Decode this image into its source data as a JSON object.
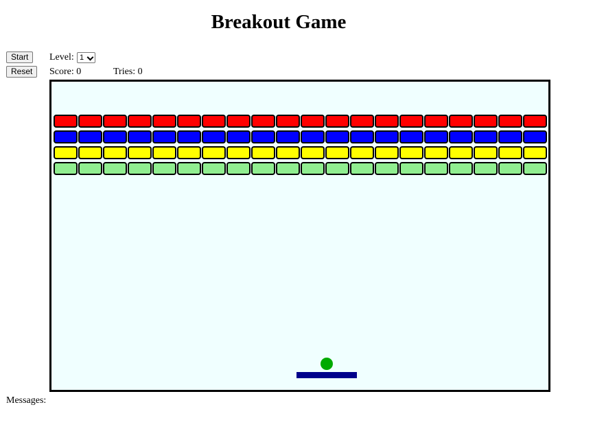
{
  "page": {
    "title": "Breakout Game"
  },
  "controls": {
    "start_label": "Start",
    "reset_label": "Reset",
    "level_label": "Level:",
    "level_value": "1",
    "score_label": "Score:",
    "score_value": "0",
    "tries_label": "Tries:",
    "tries_value": "0"
  },
  "messages": {
    "label": "Messages:",
    "text": ""
  },
  "game": {
    "background": "#f0ffff",
    "brick_columns": 20,
    "brick_rows": [
      {
        "color": "#ff0000",
        "name": "red"
      },
      {
        "color": "#0000ff",
        "name": "blue"
      },
      {
        "color": "#ffff00",
        "name": "yellow"
      },
      {
        "color": "#90ee90",
        "name": "light-green"
      }
    ],
    "ball_color": "#00aa00",
    "paddle_color": "#00008b"
  }
}
